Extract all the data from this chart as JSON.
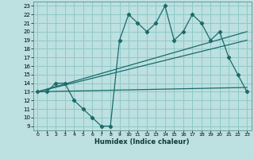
{
  "xlabel": "Humidex (Indice chaleur)",
  "bg_color": "#bde0e0",
  "grid_color": "#90c8c8",
  "line_color": "#1a6b6b",
  "xlim": [
    -0.5,
    23.5
  ],
  "ylim": [
    8.5,
    23.5
  ],
  "x_ticks": [
    0,
    1,
    2,
    3,
    4,
    5,
    6,
    7,
    8,
    9,
    10,
    11,
    12,
    13,
    14,
    15,
    16,
    17,
    18,
    19,
    20,
    21,
    22,
    23
  ],
  "y_ticks": [
    9,
    10,
    11,
    12,
    13,
    14,
    15,
    16,
    17,
    18,
    19,
    20,
    21,
    22,
    23
  ],
  "jagged_x": [
    0,
    1,
    2,
    3,
    4,
    5,
    6,
    7,
    8,
    9,
    10,
    11,
    12,
    13,
    14,
    15,
    16,
    17,
    18,
    19,
    20,
    21,
    22,
    23
  ],
  "jagged_y": [
    13,
    13,
    14,
    14,
    12,
    11,
    10,
    9,
    9,
    19,
    22,
    21,
    20,
    21,
    23,
    19,
    20,
    22,
    21,
    19,
    20,
    17,
    15,
    13
  ],
  "lower_line_x": [
    0,
    23
  ],
  "lower_line_y": [
    13.0,
    13.5
  ],
  "middle_line_x": [
    0,
    23
  ],
  "middle_line_y": [
    13.0,
    19.0
  ],
  "upper_line_x": [
    0,
    23
  ],
  "upper_line_y": [
    13.0,
    20.0
  ]
}
